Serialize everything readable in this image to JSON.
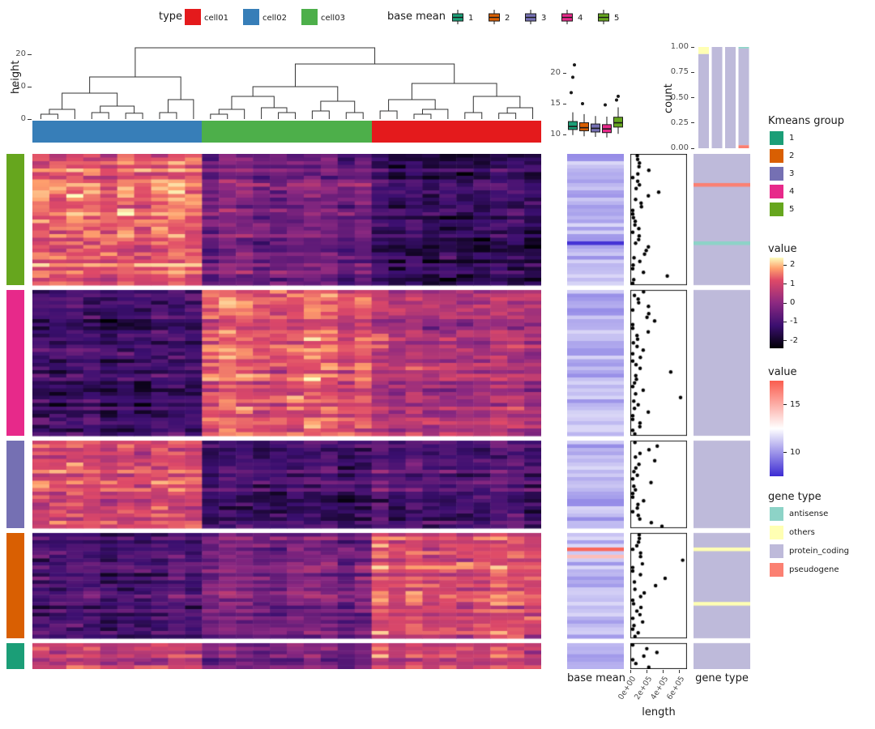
{
  "ui": {
    "legend_type": {
      "title": "type",
      "items": [
        {
          "label": "cell01",
          "color": "#e41a1c"
        },
        {
          "label": "cell02",
          "color": "#377eb8"
        },
        {
          "label": "cell03",
          "color": "#4daf4a"
        }
      ]
    },
    "legend_base_mean_top": {
      "title": "base mean",
      "items": [
        {
          "label": "1",
          "color": "#1b9e77"
        },
        {
          "label": "2",
          "color": "#d95f02"
        },
        {
          "label": "3",
          "color": "#7570b3"
        },
        {
          "label": "4",
          "color": "#e7298a"
        },
        {
          "label": "5",
          "color": "#66a61e"
        }
      ]
    },
    "legend_kmeans": {
      "title": "Kmeans group",
      "items": [
        {
          "label": "1",
          "color": "#1b9e77"
        },
        {
          "label": "2",
          "color": "#d95f02"
        },
        {
          "label": "3",
          "color": "#7570b3"
        },
        {
          "label": "4",
          "color": "#e7298a"
        },
        {
          "label": "5",
          "color": "#66a61e"
        }
      ]
    },
    "legend_value_main": {
      "title": "value",
      "ticks": [
        "2",
        "1",
        "0",
        "-1",
        "-2"
      ],
      "tick_values": [
        2,
        1,
        0,
        -1,
        -2
      ],
      "domain_top_bottom": [
        2.4,
        -2.4
      ],
      "gradient_css_stops": [
        "#fcfdbf 0%",
        "#fe9f6d 12%",
        "#de4968 25%",
        "#8c2981 50%",
        "#3b0f70 75%",
        "#000004 100%"
      ]
    },
    "legend_value_basemean": {
      "title": "value",
      "ticks": [
        "15",
        "10"
      ],
      "tick_values": [
        15,
        10
      ],
      "domain_top_bottom": [
        17.5,
        7.5
      ],
      "gradient_css_stops": [
        "#fa5d4f 0%",
        "#ffffff 50%",
        "#3c2bd3 100%"
      ]
    },
    "legend_gene_type": {
      "title": "gene type",
      "items": [
        {
          "label": "antisense",
          "color": "#8dd3c7"
        },
        {
          "label": "others",
          "color": "#ffffb3"
        },
        {
          "label": "protein_coding",
          "color": "#bebada"
        },
        {
          "label": "pseudogene",
          "color": "#fb8072"
        }
      ]
    },
    "axis_labels": {
      "dendro_y": "height",
      "count_y": "count",
      "base_mean_x": "base mean",
      "length_x": "length",
      "gene_type_x": "gene type"
    }
  },
  "chart_data": [
    {
      "id": "col_dendrogram",
      "type": "dendrogram",
      "orientation": "top",
      "ylabel": "height",
      "yticks": [
        0,
        10,
        20
      ],
      "n_leaves": 30,
      "tree": [
        22,
        [
          13,
          [
            8,
            [
              3,
              [
                1.5,
                0,
                1
              ],
              2
            ],
            [
              4,
              [
                2,
                3,
                4
              ],
              [
                1.8,
                5,
                6
              ]
            ]
          ],
          [
            6,
            [
              2,
              7,
              8
            ],
            9
          ]
        ],
        [
          17,
          [
            10,
            [
              7,
              [
                3,
                [
                  1.5,
                  10,
                  11
                ],
                12
              ],
              [
                3.5,
                13,
                [
                  2,
                  14,
                  15
                ]
              ]
            ],
            [
              5.5,
              [
                2.5,
                16,
                17
              ],
              [
                2,
                18,
                19
              ]
            ]
          ],
          [
            11,
            [
              6,
              [
                2.5,
                20,
                21
              ],
              [
                3,
                [
                  1.5,
                  22,
                  23
                ],
                24
              ]
            ],
            [
              7,
              [
                2,
                25,
                26
              ],
              [
                3.5,
                [
                  1.8,
                  27,
                  28
                ],
                29
              ]
            ]
          ]
        ]
      ]
    },
    {
      "id": "expression_heatmap",
      "type": "heatmap",
      "palette": "magma",
      "value_domain": [
        -2.3,
        2.3
      ],
      "palette_stops": [
        [
          0,
          "#000004"
        ],
        [
          0.25,
          "#3b0f70"
        ],
        [
          0.5,
          "#8c2981"
        ],
        [
          0.75,
          "#de4968"
        ],
        [
          0.88,
          "#fe9f6d"
        ],
        [
          1,
          "#fcfdbf"
        ]
      ],
      "columns": {
        "groups": [
          {
            "name": "cell02",
            "color": "#377eb8",
            "n": 10
          },
          {
            "name": "cell03",
            "color": "#4daf4a",
            "n": 10
          },
          {
            "name": "cell01",
            "color": "#e41a1c",
            "n": 10
          }
        ]
      },
      "row_clusters": [
        {
          "kmeans": "5",
          "color": "#66a61e",
          "n_rows": 36,
          "group_means": [
            1.25,
            -0.35,
            -1.3
          ]
        },
        {
          "kmeans": "4",
          "color": "#e7298a",
          "n_rows": 40,
          "group_means": [
            -1.25,
            1.15,
            0.45
          ]
        },
        {
          "kmeans": "3",
          "color": "#7570b3",
          "n_rows": 24,
          "group_means": [
            1.05,
            -1.05,
            -0.8
          ]
        },
        {
          "kmeans": "2",
          "color": "#d95f02",
          "n_rows": 29,
          "group_means": [
            -1.0,
            -0.25,
            1.15
          ]
        },
        {
          "kmeans": "1",
          "color": "#1b9e77",
          "n_rows": 7,
          "group_means": [
            0.7,
            -0.3,
            0.95
          ]
        }
      ],
      "noise_sd": 0.55,
      "row_jitter": 0.45,
      "col_jitter": 0.25,
      "seed": 42
    },
    {
      "id": "base_mean_column",
      "type": "column-heatmap",
      "label": "base mean",
      "domain": [
        7.5,
        17.5
      ],
      "gradient_stops": [
        [
          0,
          "#3c2bd3"
        ],
        [
          0.5,
          "#ffffff"
        ],
        [
          1,
          "#fa5d4f"
        ]
      ],
      "baseline_range": [
        9.8,
        11.6
      ],
      "special_rows": [
        {
          "cluster": 0,
          "row": 24,
          "value": 7.7
        },
        {
          "cluster": 3,
          "row": 4,
          "value": 17.2
        },
        {
          "cluster": 3,
          "row": 6,
          "value": 14.5
        }
      ],
      "seed": 7
    },
    {
      "id": "length_scatter",
      "type": "scatter",
      "label": "length",
      "xticks": [
        "0e+00",
        "2e+05",
        "4e+05",
        "6e+05"
      ],
      "xtick_values": [
        0,
        200000,
        400000,
        600000
      ],
      "xmax": 700000,
      "dot_color": "#000000",
      "mean_length": 120000,
      "special_dots": [
        {
          "cluster": 0,
          "row": 10,
          "value": 350000
        },
        {
          "cluster": 1,
          "row": 29,
          "value": 620000
        },
        {
          "cluster": 1,
          "row": 8,
          "value": 300000
        }
      ],
      "seed": 11
    },
    {
      "id": "gene_type_column",
      "type": "column-categorical",
      "label": "gene type",
      "default": "protein_coding",
      "colors": {
        "antisense": "#8dd3c7",
        "others": "#ffffb3",
        "protein_coding": "#bebada",
        "pseudogene": "#fb8072"
      },
      "special_rows": [
        {
          "cluster": 0,
          "row": 8,
          "type": "pseudogene"
        },
        {
          "cluster": 0,
          "row": 24,
          "type": "antisense"
        },
        {
          "cluster": 3,
          "row": 4,
          "type": "others"
        },
        {
          "cluster": 3,
          "row": 19,
          "type": "others"
        }
      ]
    },
    {
      "id": "base_mean_boxplots",
      "type": "boxplot",
      "yticks": [
        10,
        15,
        20
      ],
      "ylim": [
        8.8,
        22
      ],
      "groups": [
        {
          "name": "1",
          "color": "#1b9e77",
          "whisker_low": 9.9,
          "q1": 10.8,
          "median": 11.3,
          "q3": 12.1,
          "whisker_high": 13.6,
          "outliers": [
            16.8,
            19.3,
            21.3
          ]
        },
        {
          "name": "2",
          "color": "#d95f02",
          "whisker_low": 9.7,
          "q1": 10.6,
          "median": 11.1,
          "q3": 11.9,
          "whisker_high": 13.3,
          "outliers": [
            15.0
          ]
        },
        {
          "name": "3",
          "color": "#7570b3",
          "whisker_low": 9.6,
          "q1": 10.4,
          "median": 11.0,
          "q3": 11.7,
          "whisker_high": 13.0,
          "outliers": []
        },
        {
          "name": "4",
          "color": "#e7298a",
          "whisker_low": 9.5,
          "q1": 10.3,
          "median": 10.9,
          "q3": 11.6,
          "whisker_high": 12.9,
          "outliers": [
            14.8
          ]
        },
        {
          "name": "5",
          "color": "#66a61e",
          "whisker_low": 10.1,
          "q1": 11.2,
          "median": 11.9,
          "q3": 12.8,
          "whisker_high": 14.4,
          "outliers": [
            15.6,
            16.2
          ]
        }
      ]
    },
    {
      "id": "gene_type_count_bars",
      "type": "stacked-bar",
      "ylabel": "count",
      "yticks": [
        "0.00",
        "0.25",
        "0.50",
        "0.75",
        "1.00"
      ],
      "ytick_values": [
        0,
        0.25,
        0.5,
        0.75,
        1
      ],
      "bars": [
        {
          "segments": [
            {
              "type": "others",
              "frac": 0.07
            },
            {
              "type": "protein_coding",
              "frac": 0.93
            }
          ]
        },
        {
          "segments": [
            {
              "type": "protein_coding",
              "frac": 1.0
            }
          ]
        },
        {
          "segments": [
            {
              "type": "protein_coding",
              "frac": 1.0
            }
          ]
        },
        {
          "segments": [
            {
              "type": "antisense",
              "frac": 0.015
            },
            {
              "type": "protein_coding",
              "frac": 0.955
            },
            {
              "type": "pseudogene",
              "frac": 0.03
            }
          ]
        }
      ]
    }
  ]
}
